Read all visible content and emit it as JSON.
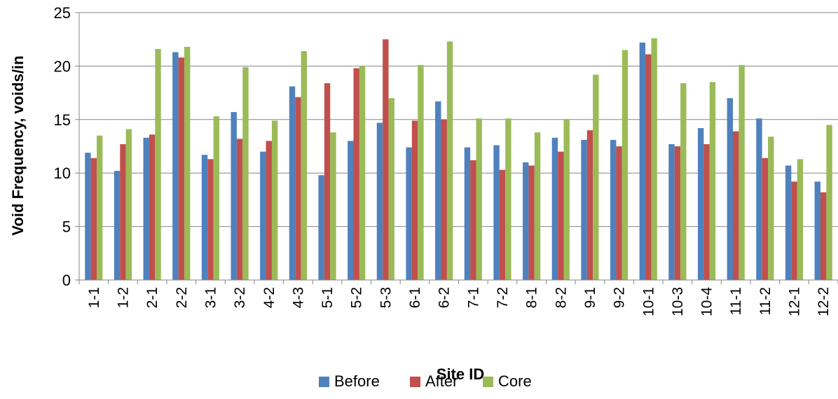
{
  "chart_data": {
    "type": "bar",
    "xlabel": "Site ID",
    "ylabel": "Void Frequency, voids/in",
    "ylim": [
      0,
      25
    ],
    "yticks": [
      0,
      5,
      10,
      15,
      20,
      25
    ],
    "grid": true,
    "legend_position": "bottom",
    "categories": [
      "1-1",
      "1-2",
      "2-1",
      "2-2",
      "3-1",
      "3-2",
      "4-2",
      "4-3",
      "5-1",
      "5-2",
      "5-3",
      "6-1",
      "6-2",
      "7-1",
      "7-2",
      "8-1",
      "8-2",
      "9-1",
      "9-2",
      "10-1",
      "10-3",
      "10-4",
      "11-1",
      "11-2",
      "12-1",
      "12-2"
    ],
    "series": [
      {
        "name": "Before",
        "color": "#4f81bd",
        "values": [
          11.9,
          10.2,
          13.3,
          21.3,
          11.7,
          15.7,
          12.0,
          18.1,
          9.8,
          13.0,
          14.7,
          12.4,
          16.7,
          12.4,
          12.6,
          11.0,
          13.3,
          13.1,
          13.1,
          22.2,
          12.7,
          14.2,
          17.0,
          15.1,
          10.7,
          9.2
        ]
      },
      {
        "name": "After",
        "color": "#c0504d",
        "values": [
          11.4,
          12.7,
          13.6,
          20.8,
          11.3,
          13.2,
          13.0,
          17.1,
          18.4,
          19.8,
          22.5,
          14.9,
          15.0,
          11.2,
          10.3,
          10.7,
          12.0,
          14.0,
          12.5,
          21.1,
          12.5,
          12.7,
          13.9,
          11.4,
          9.2,
          8.2
        ]
      },
      {
        "name": "Core",
        "color": "#9bbb59",
        "values": [
          13.5,
          14.1,
          21.6,
          21.8,
          15.3,
          19.9,
          14.9,
          21.4,
          13.8,
          20.0,
          17.0,
          20.1,
          22.3,
          15.1,
          15.1,
          13.8,
          15.0,
          19.2,
          21.5,
          22.6,
          18.4,
          18.5,
          20.1,
          13.4,
          11.3,
          14.5
        ]
      }
    ]
  }
}
